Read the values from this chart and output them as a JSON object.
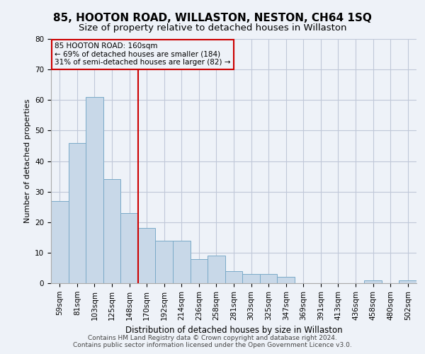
{
  "title": "85, HOOTON ROAD, WILLASTON, NESTON, CH64 1SQ",
  "subtitle": "Size of property relative to detached houses in Willaston",
  "xlabel": "Distribution of detached houses by size in Willaston",
  "ylabel": "Number of detached properties",
  "footer_line1": "Contains HM Land Registry data © Crown copyright and database right 2024.",
  "footer_line2": "Contains public sector information licensed under the Open Government Licence v3.0.",
  "categories": [
    "59sqm",
    "81sqm",
    "103sqm",
    "125sqm",
    "148sqm",
    "170sqm",
    "192sqm",
    "214sqm",
    "236sqm",
    "258sqm",
    "281sqm",
    "303sqm",
    "325sqm",
    "347sqm",
    "369sqm",
    "391sqm",
    "413sqm",
    "436sqm",
    "458sqm",
    "480sqm",
    "502sqm"
  ],
  "values": [
    27,
    46,
    61,
    34,
    23,
    18,
    14,
    14,
    8,
    9,
    4,
    3,
    3,
    2,
    0,
    0,
    0,
    0,
    1,
    0,
    1
  ],
  "bar_color": "#c8d8e8",
  "bar_edge_color": "#7aaac8",
  "annotation_text_line1": "85 HOOTON ROAD: 160sqm",
  "annotation_text_line2": "← 69% of detached houses are smaller (184)",
  "annotation_text_line3": "31% of semi-detached houses are larger (82) →",
  "annotation_box_color": "#cc0000",
  "vline_color": "#cc0000",
  "vline_x_index": 4.5,
  "ylim": [
    0,
    80
  ],
  "yticks": [
    0,
    10,
    20,
    30,
    40,
    50,
    60,
    70,
    80
  ],
  "grid_color": "#c0c8d8",
  "bg_color": "#eef2f8",
  "title_fontsize": 11,
  "subtitle_fontsize": 9.5,
  "axis_fontsize": 8,
  "tick_fontsize": 7.5,
  "footer_fontsize": 6.5
}
